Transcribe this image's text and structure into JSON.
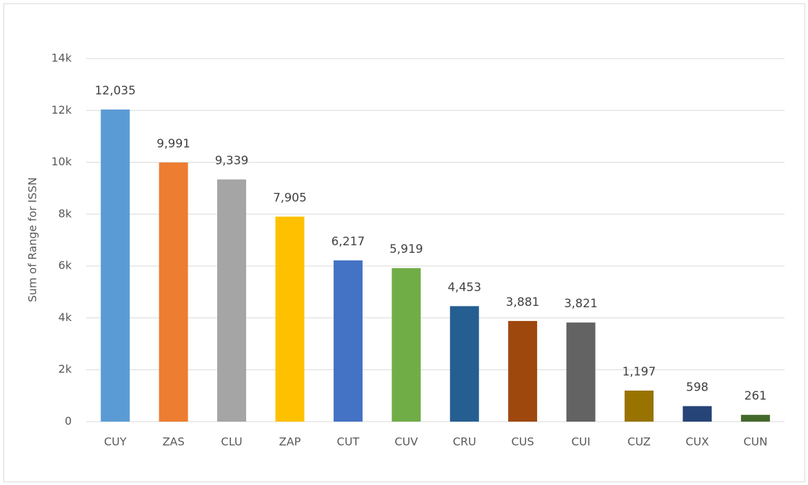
{
  "chart_data": {
    "type": "bar",
    "y_label": "Sum of Range for ISSN",
    "categories": [
      "CUY",
      "ZAS",
      "CLU",
      "ZAP",
      "CUT",
      "CUV",
      "CRU",
      "CUS",
      "CUI",
      "CUZ",
      "CUX",
      "CUN"
    ],
    "values": [
      12035,
      9991,
      9339,
      7905,
      6217,
      5919,
      4453,
      3881,
      3821,
      1197,
      598,
      261
    ],
    "value_labels": [
      "12,035",
      "9,991",
      "9,339",
      "7,905",
      "6,217",
      "5,919",
      "4,453",
      "3,881",
      "3,821",
      "1,197",
      "598",
      "261"
    ],
    "colors": [
      "#5b9bd5",
      "#ed7d31",
      "#a5a5a5",
      "#ffc000",
      "#4472c4",
      "#70ad47",
      "#255e91",
      "#9e480e",
      "#636363",
      "#997300",
      "#264478",
      "#43682b"
    ],
    "ylim": [
      0,
      14000
    ],
    "yticks": [
      0,
      {
        "value": 2000,
        "label": "2k"
      },
      {
        "value": 4000,
        "label": "4k"
      },
      {
        "value": 6000,
        "label": "6k"
      },
      {
        "value": 8000,
        "label": "8k"
      },
      {
        "value": 10000,
        "label": "10k"
      },
      {
        "value": 12000,
        "label": "12k"
      },
      {
        "value": 14000,
        "label": "14k"
      }
    ],
    "grid": true
  }
}
